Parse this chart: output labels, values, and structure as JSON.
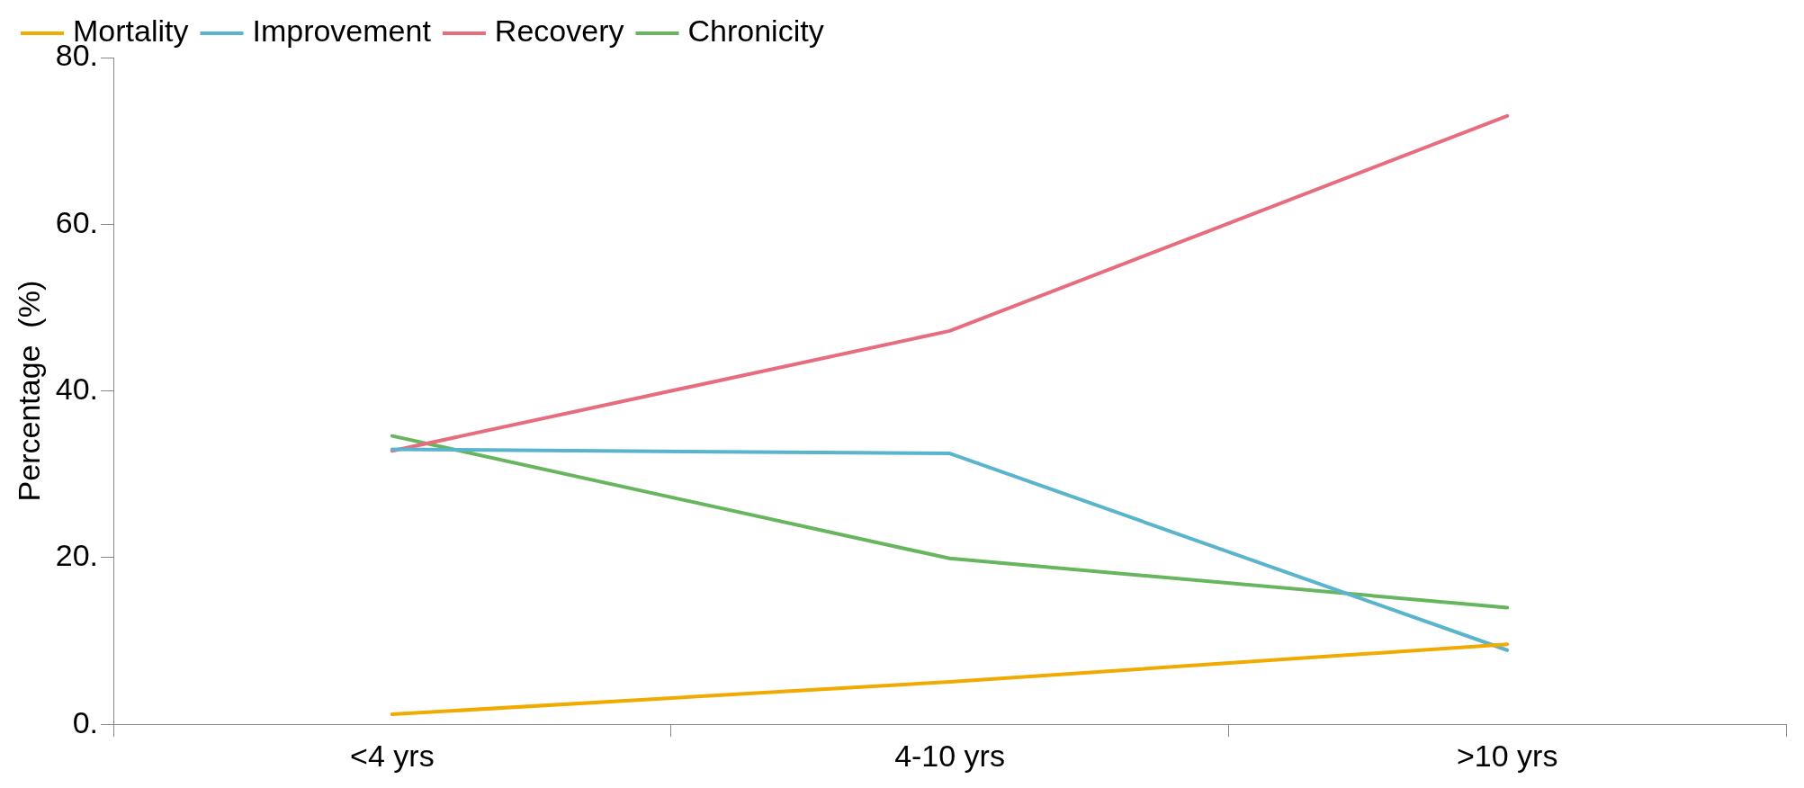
{
  "chart_data": {
    "type": "line",
    "ylabel": "Percentage  (%)",
    "categories": [
      "<4 yrs",
      "4-10 yrs",
      ">10 yrs"
    ],
    "series": [
      {
        "name": "Mortality",
        "color": "#f0aa00",
        "values": [
          1.2,
          5.1,
          9.6
        ]
      },
      {
        "name": "Improvement",
        "color": "#5ab4cc",
        "values": [
          33.0,
          32.5,
          8.9
        ]
      },
      {
        "name": "Recovery",
        "color": "#e76d7e",
        "values": [
          32.8,
          47.2,
          73.0
        ]
      },
      {
        "name": "Chronicity",
        "color": "#67b65f",
        "values": [
          34.6,
          19.9,
          14.0
        ]
      }
    ],
    "ylim": [
      0,
      80
    ],
    "yticks": [
      {
        "value": 0,
        "label": "0."
      },
      {
        "value": 20,
        "label": "20."
      },
      {
        "value": 40,
        "label": "40."
      },
      {
        "value": 60,
        "label": "60."
      },
      {
        "value": 80,
        "label": "80."
      }
    ],
    "grid": false,
    "legend": "top",
    "marker": "none",
    "line_style": "solid"
  }
}
